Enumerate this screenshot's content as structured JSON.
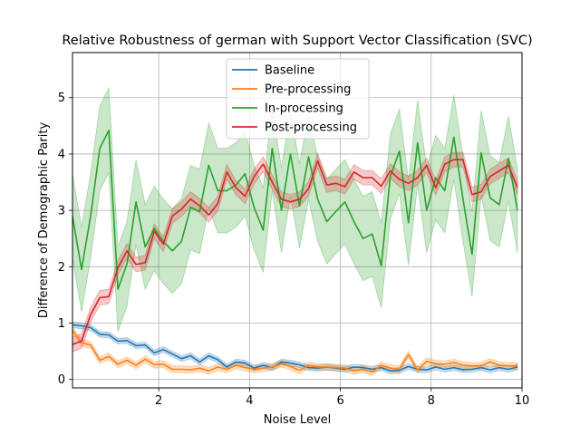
{
  "chart_data": {
    "type": "line",
    "title": "Relative Robustness of german with Support Vector Classification (SVC)",
    "xlabel": "Noise Level",
    "ylabel": "Difference of Demographic Parity",
    "xlim": [
      0.1,
      10
    ],
    "ylim": [
      -0.15,
      5.8
    ],
    "xticks": [
      2,
      4,
      6,
      8,
      10
    ],
    "yticks": [
      0,
      1,
      2,
      3,
      4,
      5
    ],
    "grid": true,
    "legend_position": "top-center",
    "x": [
      0.1,
      0.3,
      0.5,
      0.7,
      0.9,
      1.1,
      1.3,
      1.5,
      1.7,
      1.9,
      2.1,
      2.3,
      2.5,
      2.7,
      2.9,
      3.1,
      3.3,
      3.5,
      3.7,
      3.9,
      4.1,
      4.3,
      4.5,
      4.7,
      4.9,
      5.1,
      5.3,
      5.5,
      5.7,
      5.9,
      6.1,
      6.3,
      6.5,
      6.7,
      6.9,
      7.1,
      7.3,
      7.5,
      7.7,
      7.9,
      8.1,
      8.3,
      8.5,
      8.7,
      8.9,
      9.1,
      9.3,
      9.5,
      9.7,
      9.9
    ],
    "series": [
      {
        "name": "Baseline",
        "color": "#1f77b4",
        "values": [
          0.97,
          0.95,
          0.92,
          0.8,
          0.79,
          0.68,
          0.69,
          0.6,
          0.61,
          0.47,
          0.53,
          0.45,
          0.37,
          0.42,
          0.31,
          0.42,
          0.35,
          0.22,
          0.31,
          0.29,
          0.2,
          0.25,
          0.21,
          0.31,
          0.29,
          0.26,
          0.21,
          0.2,
          0.22,
          0.2,
          0.18,
          0.22,
          0.21,
          0.18,
          0.21,
          0.15,
          0.16,
          0.23,
          0.18,
          0.17,
          0.22,
          0.18,
          0.21,
          0.17,
          0.18,
          0.21,
          0.17,
          0.21,
          0.18,
          0.22
        ],
        "band": 0.05
      },
      {
        "name": "Pre-processing",
        "color": "#ff7f0e",
        "values": [
          0.87,
          0.65,
          0.61,
          0.34,
          0.41,
          0.27,
          0.34,
          0.25,
          0.36,
          0.26,
          0.27,
          0.18,
          0.18,
          0.17,
          0.2,
          0.15,
          0.22,
          0.18,
          0.25,
          0.21,
          0.18,
          0.2,
          0.22,
          0.28,
          0.23,
          0.16,
          0.25,
          0.22,
          0.22,
          0.21,
          0.2,
          0.15,
          0.18,
          0.13,
          0.25,
          0.2,
          0.18,
          0.44,
          0.17,
          0.32,
          0.28,
          0.27,
          0.3,
          0.25,
          0.24,
          0.24,
          0.31,
          0.25,
          0.24,
          0.24
        ],
        "band": 0.06
      },
      {
        "name": "In-processing",
        "color": "#2ca02c",
        "values": [
          2.9,
          1.95,
          2.9,
          4.1,
          4.42,
          1.6,
          2.05,
          3.15,
          2.35,
          2.68,
          2.45,
          2.28,
          2.45,
          3.05,
          2.98,
          3.8,
          3.35,
          3.35,
          3.45,
          3.65,
          3.05,
          2.65,
          4.1,
          3.0,
          4.0,
          3.08,
          3.95,
          3.2,
          2.8,
          2.98,
          3.15,
          2.8,
          2.5,
          2.58,
          2.02,
          3.6,
          4.05,
          2.78,
          4.2,
          3.0,
          3.58,
          3.35,
          4.3,
          3.2,
          2.22,
          4.02,
          3.22,
          3.1,
          3.92,
          3.0
        ],
        "band": 0.75
      },
      {
        "name": "Post-processing",
        "color": "#d62728",
        "values": [
          0.62,
          0.68,
          1.15,
          1.45,
          1.47,
          1.98,
          2.28,
          2.04,
          2.07,
          2.63,
          2.4,
          2.9,
          3.02,
          3.2,
          3.08,
          2.92,
          3.12,
          3.68,
          3.4,
          3.25,
          3.6,
          3.82,
          3.5,
          3.2,
          3.15,
          3.2,
          3.38,
          3.88,
          3.45,
          3.48,
          3.42,
          3.68,
          3.58,
          3.58,
          3.43,
          3.7,
          3.55,
          3.48,
          3.58,
          3.8,
          3.4,
          3.82,
          3.9,
          3.9,
          3.28,
          3.33,
          3.6,
          3.7,
          3.8,
          3.4
        ],
        "band": 0.13
      }
    ]
  }
}
